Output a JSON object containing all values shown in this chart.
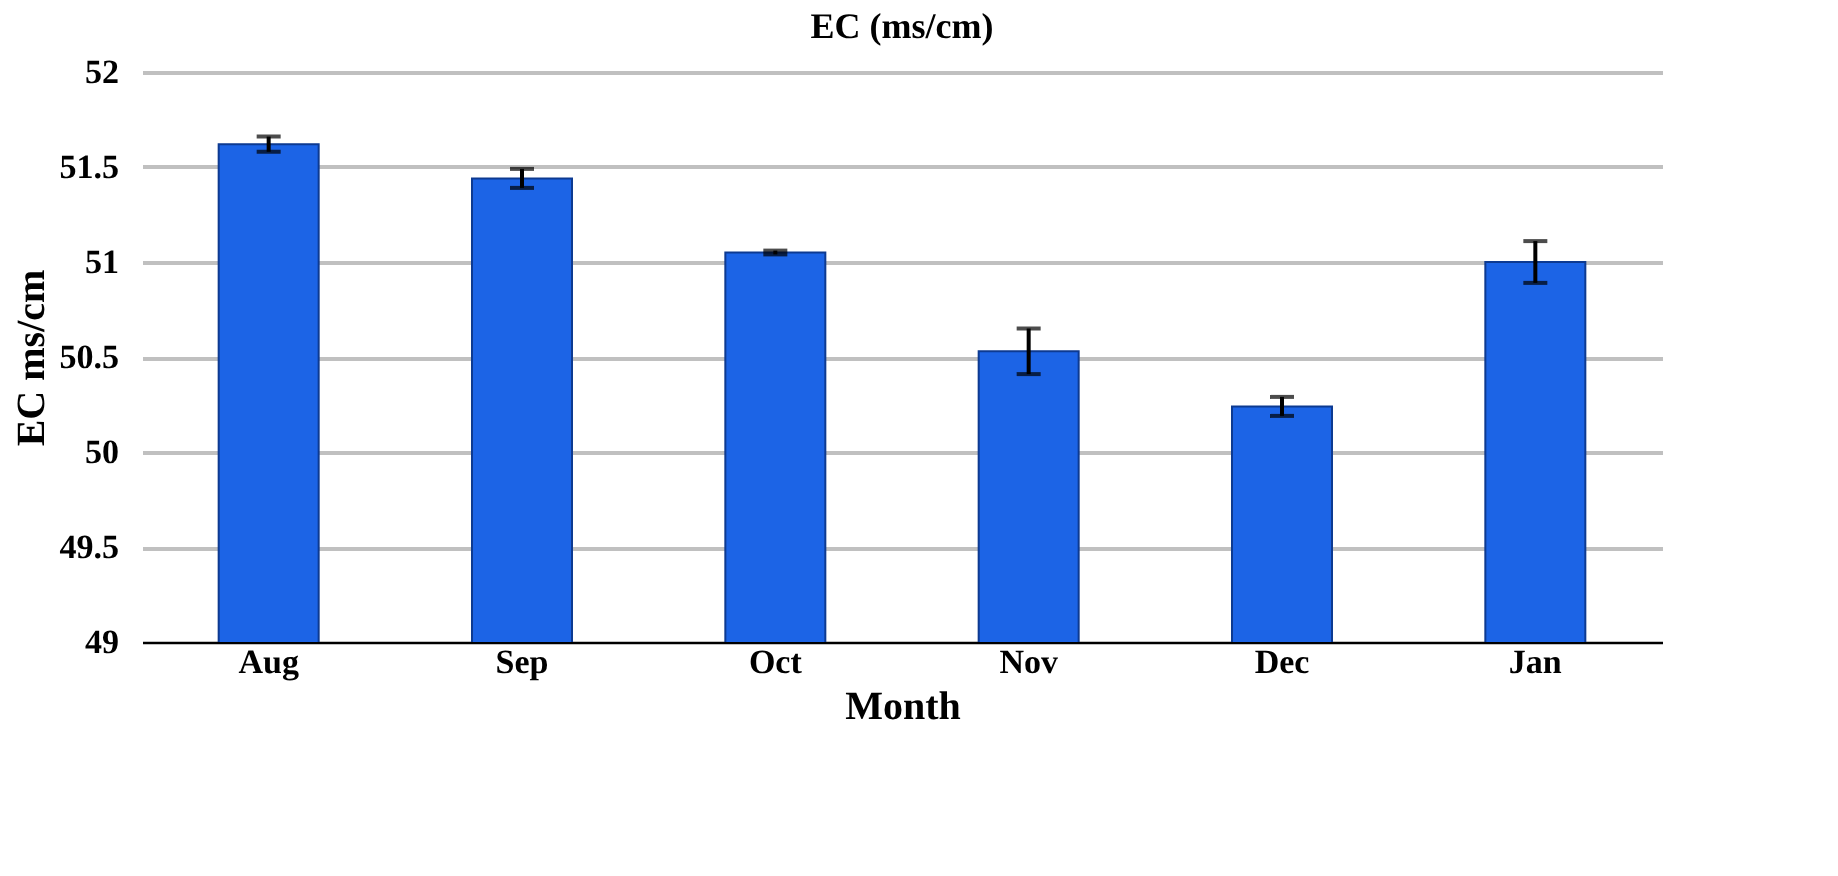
{
  "chart_data": {
    "type": "bar",
    "title": "EC (ms/cm)",
    "xlabel": "Month",
    "ylabel": "EC ms/cm",
    "categories": [
      "Aug",
      "Sep",
      "Oct",
      "Nov",
      "Dec",
      "Jan"
    ],
    "values": [
      51.62,
      51.44,
      51.05,
      50.53,
      50.24,
      51.0
    ],
    "errors": [
      0.04,
      0.05,
      0.01,
      0.12,
      0.05,
      0.11
    ],
    "color": "#1c64e6",
    "ylim": [
      49,
      52
    ],
    "yticks": [
      49,
      49.5,
      50,
      50.5,
      51,
      51.5,
      52
    ],
    "grid": "y"
  }
}
